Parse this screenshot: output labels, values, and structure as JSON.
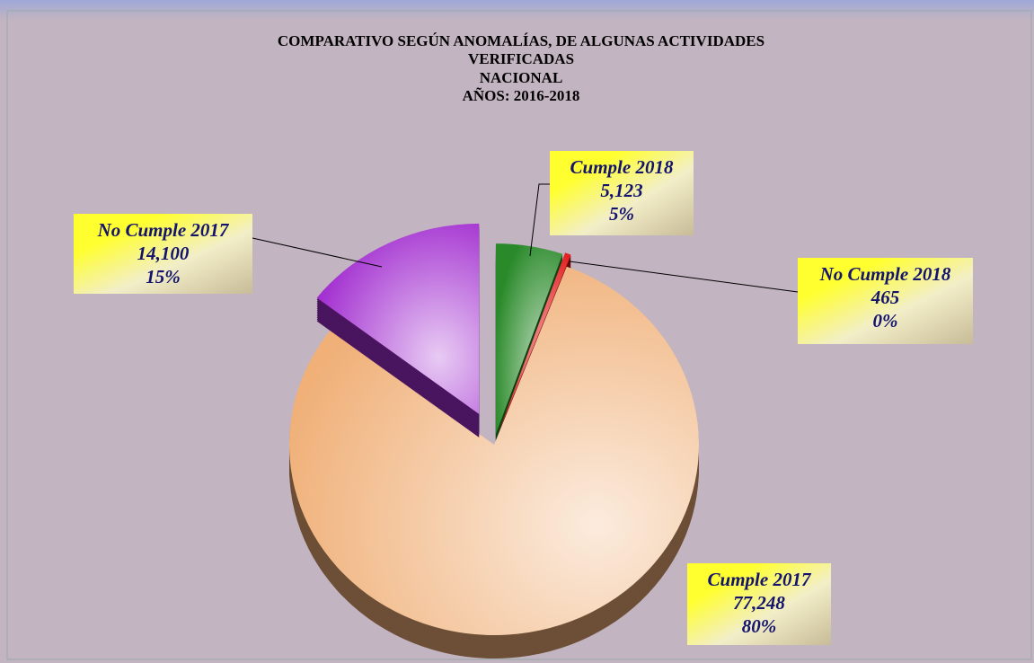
{
  "chart_data": {
    "type": "pie",
    "title": [
      "COMPARATIVO SEGÚN ANOMALÍAS, DE ALGUNAS ACTIVIDADES",
      "VERIFICADAS",
      "NACIONAL",
      "AÑOS: 2016-2018"
    ],
    "categories": [
      "Cumple 2018",
      "No Cumple 2018",
      "Cumple 2017",
      "No Cumple 2017"
    ],
    "values": [
      5123,
      465,
      77248,
      14100
    ],
    "value_labels": [
      "5,123",
      "465",
      "77,248",
      "14,100"
    ],
    "percent_labels": [
      "5%",
      "0%",
      "80%",
      "15%"
    ],
    "colors": [
      "#2a8a2a",
      "#e01010",
      "#f0b078",
      "#a22ed0"
    ]
  }
}
